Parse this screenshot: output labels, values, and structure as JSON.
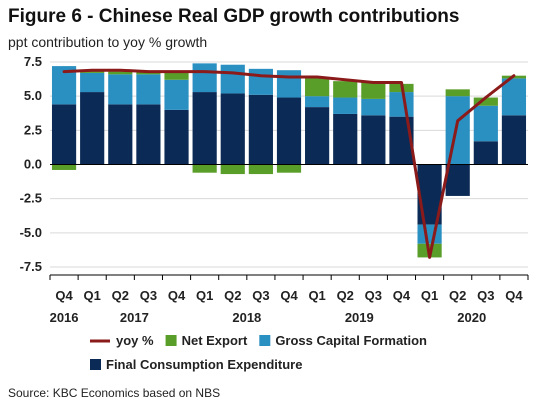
{
  "title": "Figure 6 - Chinese Real GDP growth contributions",
  "subtitle": "ppt contribution to yoy % growth",
  "source": "Source: KBC Economics based on NBS",
  "colors": {
    "final_consumption": "#0b2a55",
    "gross_capital": "#2a8fc1",
    "net_export": "#5a9e2a",
    "yoy": "#8b1a1a",
    "gridline": "#d9d9d9",
    "axis": "#000000"
  },
  "chart_data": {
    "type": "bar",
    "stacked": true,
    "ylim": [
      -7.5,
      7.5
    ],
    "yticks": [
      7.5,
      5.0,
      2.5,
      0.0,
      -2.5,
      -5.0,
      -7.5
    ],
    "ytick_labels": [
      "7.5",
      "5.0",
      "2.5",
      "0.0",
      "-2.5",
      "-5.0",
      "-7.5"
    ],
    "categories": [
      "Q4 2016",
      "Q1 2017",
      "Q2 2017",
      "Q3 2017",
      "Q4 2017",
      "Q1 2018",
      "Q2 2018",
      "Q3 2018",
      "Q4 2018",
      "Q1 2019",
      "Q2 2019",
      "Q3 2019",
      "Q4 2019",
      "Q1 2020",
      "Q2 2020",
      "Q3 2020",
      "Q4 2020"
    ],
    "quarter_labels": [
      "Q4",
      "Q1",
      "Q2",
      "Q3",
      "Q4",
      "Q1",
      "Q2",
      "Q3",
      "Q4",
      "Q1",
      "Q2",
      "Q3",
      "Q4",
      "Q1",
      "Q2",
      "Q3",
      "Q4"
    ],
    "year_labels": [
      {
        "label": "2016",
        "at_index": 0
      },
      {
        "label": "2017",
        "at_index": 2.5
      },
      {
        "label": "2018",
        "at_index": 6.5
      },
      {
        "label": "2019",
        "at_index": 10.5
      },
      {
        "label": "2020",
        "at_index": 14.5
      }
    ],
    "series": [
      {
        "name": "Final Consumption Expenditure",
        "kind": "bar",
        "color_key": "final_consumption",
        "values": [
          4.4,
          5.3,
          4.4,
          4.4,
          4.0,
          5.3,
          5.2,
          5.1,
          4.9,
          4.2,
          3.7,
          3.6,
          3.5,
          -4.4,
          -2.3,
          1.7,
          3.6
        ]
      },
      {
        "name": "Gross Capital Formation",
        "kind": "bar",
        "color_key": "gross_capital",
        "values": [
          2.8,
          1.4,
          2.2,
          2.2,
          2.2,
          2.1,
          2.1,
          1.9,
          2.0,
          0.8,
          1.2,
          1.2,
          1.8,
          -1.4,
          5.0,
          2.6,
          2.7
        ]
      },
      {
        "name": "Net Export",
        "kind": "bar",
        "color_key": "net_export",
        "values": [
          -0.4,
          0.2,
          0.2,
          0.2,
          0.6,
          -0.6,
          -0.7,
          -0.7,
          -0.6,
          1.4,
          1.2,
          1.2,
          0.6,
          -1.0,
          0.5,
          0.6,
          0.2
        ]
      },
      {
        "name": "yoy %",
        "kind": "line",
        "color_key": "yoy",
        "values": [
          6.8,
          6.9,
          6.9,
          6.8,
          6.8,
          6.8,
          6.7,
          6.5,
          6.4,
          6.4,
          6.2,
          6.0,
          6.0,
          -6.8,
          3.2,
          4.9,
          6.5
        ]
      }
    ],
    "legend": {
      "position": "bottom",
      "rows": [
        [
          "yoy %",
          "Net Export",
          "Gross Capital Formation"
        ],
        [
          "Final Consumption Expenditure"
        ]
      ]
    }
  }
}
